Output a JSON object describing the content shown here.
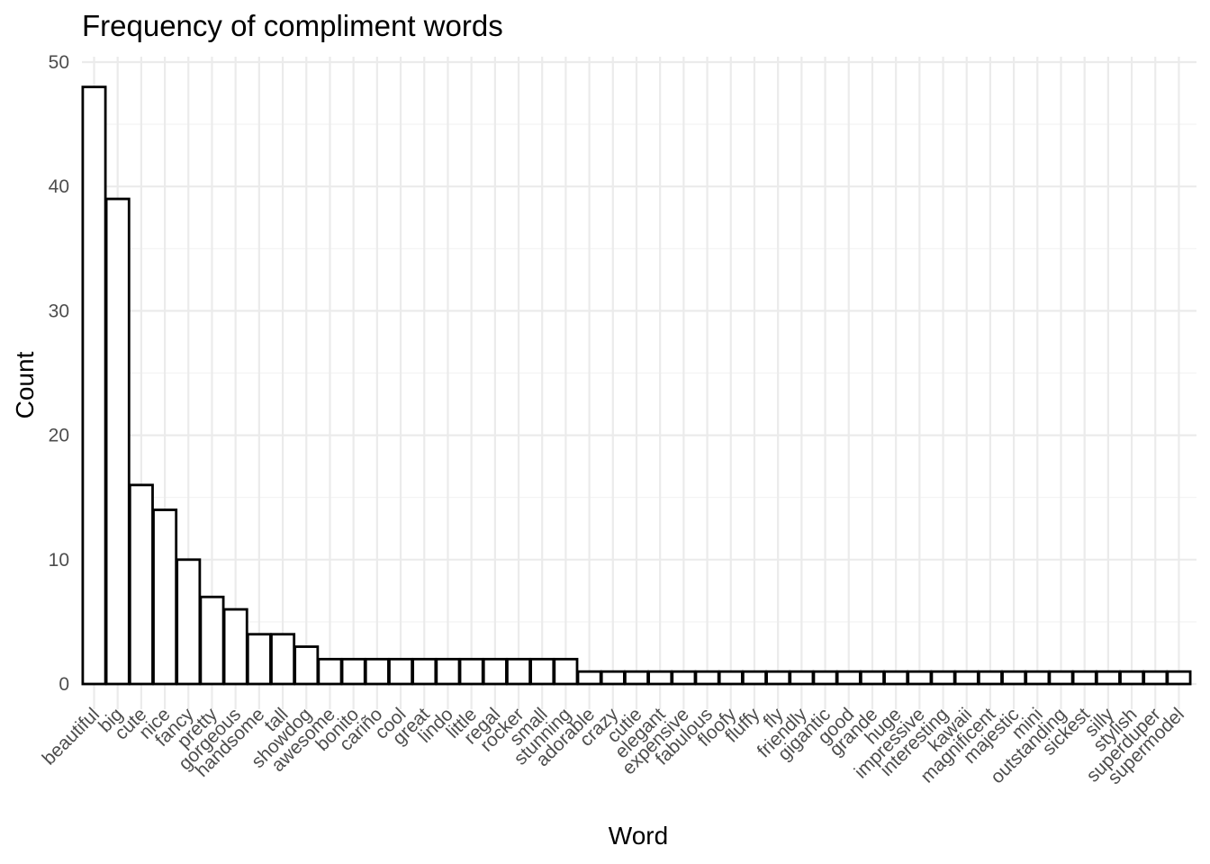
{
  "chart_data": {
    "type": "bar",
    "title": "Frequency of compliment words",
    "xlabel": "Word",
    "ylabel": "Count",
    "ylim": [
      0,
      50
    ],
    "yticks": [
      0,
      10,
      20,
      30,
      40,
      50
    ],
    "grid": true,
    "legend": "none",
    "bar_fill": "#ffffff",
    "bar_stroke": "#000000",
    "categories": [
      "beautiful",
      "big",
      "cute",
      "nice",
      "fancy",
      "pretty",
      "gorgeous",
      "handsome",
      "tall",
      "showdog",
      "awesome",
      "bonito",
      "cariño",
      "cool",
      "great",
      "lindo",
      "little",
      "regal",
      "rocker",
      "small",
      "stunning",
      "adorable",
      "crazy",
      "cutie",
      "elegant",
      "expensive",
      "fabulous",
      "floofy",
      "fluffy",
      "fly",
      "friendly",
      "gigantic",
      "good",
      "grande",
      "huge",
      "impressive",
      "interesting",
      "kawaii",
      "magnificent",
      "majestic",
      "mini",
      "outstanding",
      "sickest",
      "silly",
      "stylish",
      "superduper",
      "supermodel"
    ],
    "values": [
      48,
      39,
      16,
      14,
      10,
      7,
      6,
      4,
      4,
      3,
      2,
      2,
      2,
      2,
      2,
      2,
      2,
      2,
      2,
      2,
      2,
      1,
      1,
      1,
      1,
      1,
      1,
      1,
      1,
      1,
      1,
      1,
      1,
      1,
      1,
      1,
      1,
      1,
      1,
      1,
      1,
      1,
      1,
      1,
      1,
      1,
      1
    ]
  }
}
